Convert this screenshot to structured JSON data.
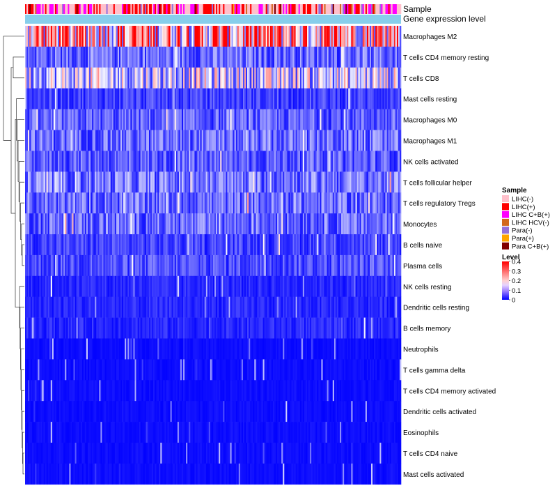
{
  "chart_data": {
    "type": "heatmap",
    "title": "",
    "annotation_tracks": [
      "Sample",
      "Gene expression level"
    ],
    "rows": [
      {
        "label": "Macrophages M2",
        "mean": 0.27
      },
      {
        "label": "T cells CD4 memory resting",
        "mean": 0.08
      },
      {
        "label": "T cells CD8",
        "mean": 0.16
      },
      {
        "label": "Mast cells resting",
        "mean": 0.05
      },
      {
        "label": "Macrophages M0",
        "mean": 0.07
      },
      {
        "label": "Macrophages M1",
        "mean": 0.08
      },
      {
        "label": "NK cells activated",
        "mean": 0.07
      },
      {
        "label": "T cells follicular helper",
        "mean": 0.09
      },
      {
        "label": "T cells regulatory  Tregs",
        "mean": 0.08
      },
      {
        "label": "Monocytes",
        "mean": 0.08
      },
      {
        "label": "B cells naive",
        "mean": 0.05
      },
      {
        "label": "Plasma cells",
        "mean": 0.06
      },
      {
        "label": "NK cells resting",
        "mean": 0.03
      },
      {
        "label": "Dendritic cells resting",
        "mean": 0.03
      },
      {
        "label": "B cells memory",
        "mean": 0.03
      },
      {
        "label": "Neutrophils",
        "mean": 0.01
      },
      {
        "label": "T cells gamma delta",
        "mean": 0.01
      },
      {
        "label": "T cells CD4 memory activated",
        "mean": 0.01
      },
      {
        "label": "Dendritic cells activated",
        "mean": 0.01
      },
      {
        "label": "Eosinophils",
        "mean": 0.01
      },
      {
        "label": "T cells CD4 naive",
        "mean": 0.01
      },
      {
        "label": "Mast cells activated",
        "mean": 0.01
      }
    ],
    "n_samples": 264,
    "sample_legend": {
      "title": "Sample",
      "items": [
        {
          "label": "LIHC(-)",
          "color": "#FFC0CB"
        },
        {
          "label": "LIHC(+)",
          "color": "#FF0000"
        },
        {
          "label": "LIHC C+B(+)",
          "color": "#FF00FF"
        },
        {
          "label": "LIHC HCV(-)",
          "color": "#D2691E"
        },
        {
          "label": "Para(-)",
          "color": "#9370DB"
        },
        {
          "label": "Para(+)",
          "color": "#FFA500"
        },
        {
          "label": "Para C+B(+)",
          "color": "#800000"
        }
      ]
    },
    "level_legend": {
      "title": "Level",
      "ticks": [
        "0.4",
        "0.3",
        "0.2",
        "0.1",
        "0"
      ],
      "range": [
        0,
        0.4
      ],
      "colors": {
        "low": "#0000FF",
        "mid": "#FFFFFF",
        "high": "#FF0000"
      }
    },
    "gene_expression_color": "#87CEEB"
  }
}
